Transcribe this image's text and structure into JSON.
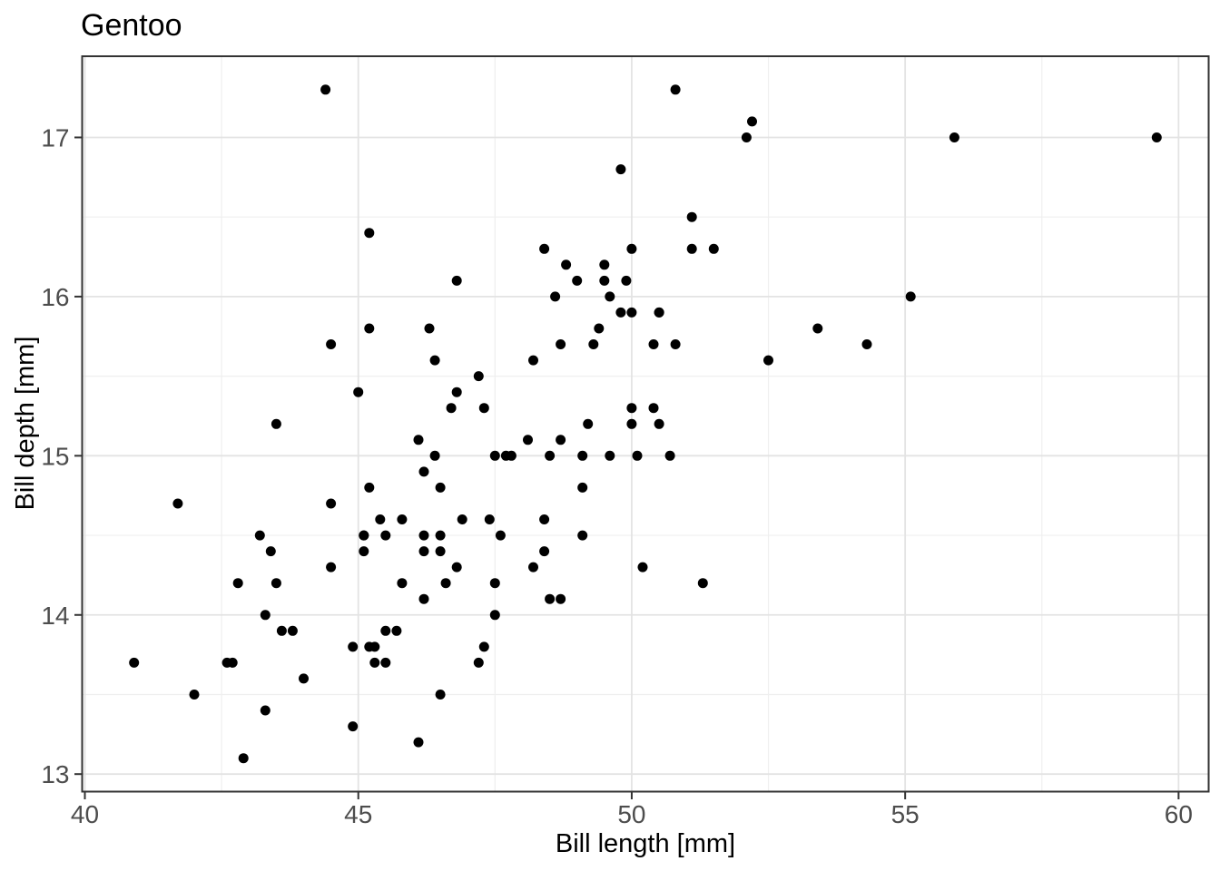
{
  "chart_data": {
    "type": "scatter",
    "title": "Gentoo",
    "xlabel": "Bill length [mm]",
    "ylabel": "Bill depth [mm]",
    "xlim": [
      39.95,
      60.55
    ],
    "ylim": [
      12.89,
      17.51
    ],
    "grid": true,
    "legend": false,
    "x_ticks": [
      {
        "v": 40,
        "label": "40"
      },
      {
        "v": 45,
        "label": "45"
      },
      {
        "v": 50,
        "label": "50"
      },
      {
        "v": 55,
        "label": "55"
      },
      {
        "v": 60,
        "label": "60"
      }
    ],
    "y_ticks": [
      {
        "v": 13,
        "label": "13"
      },
      {
        "v": 14,
        "label": "14"
      },
      {
        "v": 15,
        "label": "15"
      },
      {
        "v": 16,
        "label": "16"
      },
      {
        "v": 17,
        "label": "17"
      }
    ],
    "x_minor_ticks": [
      42.5,
      47.5,
      52.5,
      57.5
    ],
    "y_minor_ticks": [
      13.5,
      14.5,
      15.5,
      16.5
    ],
    "colors": {
      "panel_bg": "#ffffff",
      "grid_major": "#e3e3e3",
      "grid_minor": "#efefef",
      "border": "#333333",
      "tick": "#333333",
      "tick_label": "#4d4d4d",
      "point": "#000000"
    },
    "points": [
      [
        46.1,
        13.2
      ],
      [
        50.0,
        16.3
      ],
      [
        48.7,
        14.1
      ],
      [
        50.0,
        15.2
      ],
      [
        47.6,
        14.5
      ],
      [
        46.5,
        13.5
      ],
      [
        45.4,
        14.6
      ],
      [
        46.7,
        15.3
      ],
      [
        43.3,
        13.4
      ],
      [
        46.8,
        15.4
      ],
      [
        40.9,
        13.7
      ],
      [
        49.0,
        16.1
      ],
      [
        45.5,
        13.7
      ],
      [
        48.4,
        14.6
      ],
      [
        45.8,
        14.6
      ],
      [
        49.3,
        15.7
      ],
      [
        42.0,
        13.5
      ],
      [
        49.2,
        15.2
      ],
      [
        46.2,
        14.5
      ],
      [
        48.7,
        15.1
      ],
      [
        50.2,
        14.3
      ],
      [
        45.1,
        14.5
      ],
      [
        46.5,
        14.5
      ],
      [
        46.3,
        15.8
      ],
      [
        42.9,
        13.1
      ],
      [
        46.1,
        15.1
      ],
      [
        44.5,
        14.3
      ],
      [
        47.8,
        15.0
      ],
      [
        48.2,
        14.3
      ],
      [
        50.0,
        15.3
      ],
      [
        47.3,
        15.3
      ],
      [
        42.8,
        14.2
      ],
      [
        45.1,
        14.5
      ],
      [
        59.6,
        17.0
      ],
      [
        49.1,
        14.8
      ],
      [
        48.4,
        16.3
      ],
      [
        42.6,
        13.7
      ],
      [
        44.4,
        17.3
      ],
      [
        44.0,
        13.6
      ],
      [
        48.7,
        15.7
      ],
      [
        42.7,
        13.7
      ],
      [
        49.6,
        16.0
      ],
      [
        45.3,
        13.7
      ],
      [
        49.6,
        15.0
      ],
      [
        50.5,
        15.9
      ],
      [
        43.6,
        13.9
      ],
      [
        45.5,
        13.9
      ],
      [
        50.5,
        15.9
      ],
      [
        44.9,
        13.3
      ],
      [
        45.2,
        15.8
      ],
      [
        46.6,
        14.2
      ],
      [
        48.5,
        14.1
      ],
      [
        45.1,
        14.4
      ],
      [
        50.1,
        15.0
      ],
      [
        46.5,
        14.4
      ],
      [
        45.0,
        15.4
      ],
      [
        43.8,
        13.9
      ],
      [
        43.2,
        14.5
      ],
      [
        50.4,
        15.3
      ],
      [
        45.3,
        13.8
      ],
      [
        46.2,
        14.9
      ],
      [
        45.7,
        13.9
      ],
      [
        54.3,
        15.7
      ],
      [
        45.8,
        14.2
      ],
      [
        49.8,
        16.8
      ],
      [
        46.2,
        14.4
      ],
      [
        49.5,
        16.2
      ],
      [
        43.5,
        14.2
      ],
      [
        50.7,
        15.0
      ],
      [
        47.7,
        15.0
      ],
      [
        46.4,
        15.6
      ],
      [
        48.2,
        15.6
      ],
      [
        46.5,
        14.8
      ],
      [
        46.4,
        15.0
      ],
      [
        48.6,
        16.0
      ],
      [
        47.5,
        14.2
      ],
      [
        51.1,
        16.3
      ],
      [
        45.2,
        13.8
      ],
      [
        45.2,
        16.4
      ],
      [
        49.1,
        14.5
      ],
      [
        52.5,
        15.6
      ],
      [
        47.4,
        14.6
      ],
      [
        50.0,
        15.9
      ],
      [
        44.9,
        13.8
      ],
      [
        50.8,
        17.3
      ],
      [
        43.4,
        14.4
      ],
      [
        51.3,
        14.2
      ],
      [
        47.5,
        14.0
      ],
      [
        52.1,
        17.0
      ],
      [
        47.5,
        15.0
      ],
      [
        52.2,
        17.1
      ],
      [
        45.5,
        14.5
      ],
      [
        49.5,
        16.1
      ],
      [
        44.5,
        14.7
      ],
      [
        50.8,
        15.7
      ],
      [
        49.4,
        15.8
      ],
      [
        46.9,
        14.6
      ],
      [
        48.4,
        14.4
      ],
      [
        51.1,
        16.5
      ],
      [
        48.5,
        15.0
      ],
      [
        55.9,
        17.0
      ],
      [
        47.2,
        15.5
      ],
      [
        49.1,
        15.0
      ],
      [
        47.3,
        13.8
      ],
      [
        46.8,
        16.1
      ],
      [
        41.7,
        14.7
      ],
      [
        53.4,
        15.8
      ],
      [
        43.3,
        14.0
      ],
      [
        48.1,
        15.1
      ],
      [
        50.5,
        15.2
      ],
      [
        49.8,
        15.9
      ],
      [
        43.5,
        15.2
      ],
      [
        51.5,
        16.3
      ],
      [
        46.2,
        14.1
      ],
      [
        55.1,
        16.0
      ],
      [
        44.5,
        15.7
      ],
      [
        48.8,
        16.2
      ],
      [
        47.2,
        13.7
      ],
      [
        46.8,
        14.3
      ],
      [
        50.4,
        15.7
      ],
      [
        45.2,
        14.8
      ],
      [
        49.9,
        16.1
      ]
    ]
  }
}
